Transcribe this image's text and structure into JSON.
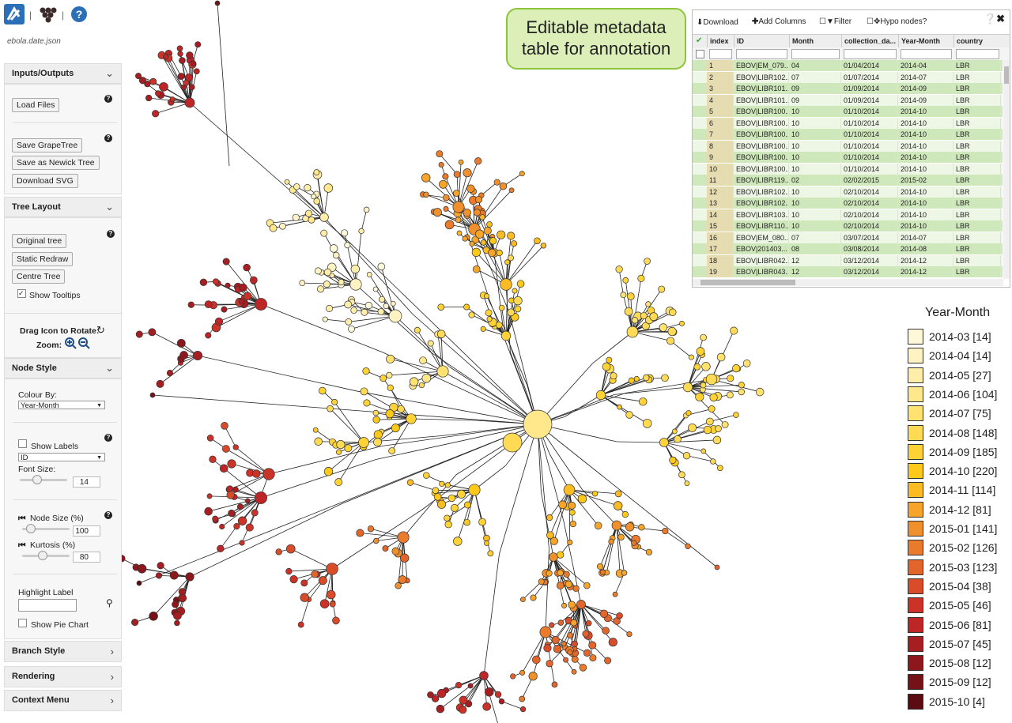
{
  "app": {
    "filename": "ebola.date.json"
  },
  "sidebar": {
    "inputs_outputs": {
      "title": "Inputs/Outputs",
      "buttons": [
        "Load Files",
        "Save GrapeTree",
        "Save as Newick Tree",
        "Download SVG"
      ]
    },
    "tree_layout": {
      "title": "Tree Layout",
      "buttons": [
        "Original tree",
        "Static Redraw",
        "Centre Tree"
      ],
      "show_tooltips": "Show Tooltips",
      "rotate": "Drag Icon to Rotate:",
      "zoom": "Zoom:"
    },
    "node_style": {
      "title": "Node Style",
      "colour_by": "Colour By:",
      "colour_by_value": "Year-Month",
      "show_labels": "Show Labels",
      "label_field": "ID",
      "font_size": "Font Size:",
      "font_size_value": "14",
      "node_size": "Node Size (%)",
      "node_size_value": "100",
      "kurtosis": "Kurtosis (%)",
      "kurtosis_value": "80",
      "highlight_label": "Highlight Label",
      "show_pie_chart": "Show Pie Chart"
    },
    "collapsed": [
      "Branch Style",
      "Rendering",
      "Context Menu"
    ]
  },
  "annotation": [
    "Editable metadata",
    "table for annotation"
  ],
  "table": {
    "toolbar": [
      "Download",
      "Add Columns",
      "Filter",
      "Hypo nodes?"
    ],
    "columns": [
      "index",
      "ID",
      "Month",
      "collection_da...",
      "Year-Month",
      "country"
    ],
    "rows": [
      [
        "1",
        "EBOV|EM_079...",
        "04",
        "01/04/2014",
        "2014-04",
        "LBR"
      ],
      [
        "2",
        "EBOV|LIBR102...",
        "07",
        "01/07/2014",
        "2014-07",
        "LBR"
      ],
      [
        "3",
        "EBOV|LIBR101...",
        "09",
        "01/09/2014",
        "2014-09",
        "LBR"
      ],
      [
        "4",
        "EBOV|LIBR101...",
        "09",
        "01/09/2014",
        "2014-09",
        "LBR"
      ],
      [
        "5",
        "EBOV|LIBR100...",
        "10",
        "01/10/2014",
        "2014-10",
        "LBR"
      ],
      [
        "6",
        "EBOV|LIBR100...",
        "10",
        "01/10/2014",
        "2014-10",
        "LBR"
      ],
      [
        "7",
        "EBOV|LIBR100...",
        "10",
        "01/10/2014",
        "2014-10",
        "LBR"
      ],
      [
        "8",
        "EBOV|LIBR100...",
        "10",
        "01/10/2014",
        "2014-10",
        "LBR"
      ],
      [
        "9",
        "EBOV|LIBR100...",
        "10",
        "01/10/2014",
        "2014-10",
        "LBR"
      ],
      [
        "10",
        "EBOV|LIBR100...",
        "10",
        "01/10/2014",
        "2014-10",
        "LBR"
      ],
      [
        "11",
        "EBOV|LIBR119...",
        "02",
        "02/02/2015",
        "2015-02",
        "LBR"
      ],
      [
        "12",
        "EBOV|LIBR102...",
        "10",
        "02/10/2014",
        "2014-10",
        "LBR"
      ],
      [
        "13",
        "EBOV|LIBR102...",
        "10",
        "02/10/2014",
        "2014-10",
        "LBR"
      ],
      [
        "14",
        "EBOV|LIBR103...",
        "10",
        "02/10/2014",
        "2014-10",
        "LBR"
      ],
      [
        "15",
        "EBOV|LIBR110...",
        "10",
        "02/10/2014",
        "2014-10",
        "LBR"
      ],
      [
        "16",
        "EBOV|EM_080...",
        "07",
        "03/07/2014",
        "2014-07",
        "LBR"
      ],
      [
        "17",
        "EBOV|201403...",
        "08",
        "03/08/2014",
        "2014-08",
        "LBR"
      ],
      [
        "18",
        "EBOV|LIBR042...",
        "12",
        "03/12/2014",
        "2014-12",
        "LBR"
      ],
      [
        "19",
        "EBOV|LIBR043...",
        "12",
        "03/12/2014",
        "2014-12",
        "LBR"
      ]
    ]
  },
  "legend": {
    "title": "Year-Month",
    "items": [
      {
        "label": "2014-03 [14]",
        "color": "#fff8d8"
      },
      {
        "label": "2014-04 [14]",
        "color": "#fff3c4"
      },
      {
        "label": "2014-05 [27]",
        "color": "#ffeeaa"
      },
      {
        "label": "2014-06 [104]",
        "color": "#ffe88c"
      },
      {
        "label": "2014-07 [75]",
        "color": "#ffe270"
      },
      {
        "label": "2014-08 [148]",
        "color": "#ffdb55"
      },
      {
        "label": "2014-09 [185]",
        "color": "#ffd235"
      },
      {
        "label": "2014-10 [220]",
        "color": "#ffc91a"
      },
      {
        "label": "2014-11 [114]",
        "color": "#fbbb22"
      },
      {
        "label": "2014-12 [81]",
        "color": "#f6a52a"
      },
      {
        "label": "2015-01 [141]",
        "color": "#f0902c"
      },
      {
        "label": "2015-02 [126]",
        "color": "#ea7a2c"
      },
      {
        "label": "2015-03 [123]",
        "color": "#e2652b"
      },
      {
        "label": "2015-04 [38]",
        "color": "#d94c2a"
      },
      {
        "label": "2015-05 [46]",
        "color": "#cc3328"
      },
      {
        "label": "2015-06 [81]",
        "color": "#bd2526"
      },
      {
        "label": "2015-07 [45]",
        "color": "#a61e22"
      },
      {
        "label": "2015-08 [12]",
        "color": "#8d171d"
      },
      {
        "label": "2015-09 [12]",
        "color": "#741218"
      },
      {
        "label": "2015-10 [4]",
        "color": "#5a0c12"
      }
    ]
  }
}
